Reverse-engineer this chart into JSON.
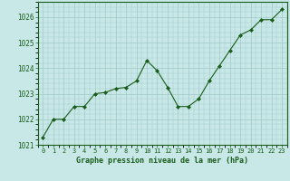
{
  "x": [
    0,
    1,
    2,
    3,
    4,
    5,
    6,
    7,
    8,
    9,
    10,
    11,
    12,
    13,
    14,
    15,
    16,
    17,
    18,
    19,
    20,
    21,
    22,
    23
  ],
  "y": [
    1021.3,
    1022.0,
    1022.0,
    1022.5,
    1022.5,
    1023.0,
    1023.05,
    1023.2,
    1023.25,
    1023.5,
    1024.3,
    1023.9,
    1023.25,
    1022.5,
    1022.5,
    1022.8,
    1023.5,
    1024.1,
    1024.7,
    1025.3,
    1025.5,
    1025.9,
    1025.9,
    1026.3
  ],
  "line_color": "#1a5c1a",
  "marker_color": "#1a5c1a",
  "bg_color": "#c8e8e8",
  "grid_color": "#a0c8c8",
  "title": "Graphe pression niveau de la mer (hPa)",
  "ylim_min": 1021.0,
  "ylim_max": 1026.6,
  "xlim_min": -0.5,
  "xlim_max": 23.5,
  "yticks": [
    1021,
    1022,
    1023,
    1024,
    1025,
    1026
  ],
  "xticks": [
    0,
    1,
    2,
    3,
    4,
    5,
    6,
    7,
    8,
    9,
    10,
    11,
    12,
    13,
    14,
    15,
    16,
    17,
    18,
    19,
    20,
    21,
    22,
    23
  ],
  "tick_label_color": "#1a5c1a",
  "title_color": "#1a5c1a",
  "font_family": "monospace",
  "ytick_fontsize": 5.5,
  "xtick_fontsize": 5.0,
  "title_fontsize": 6.0
}
